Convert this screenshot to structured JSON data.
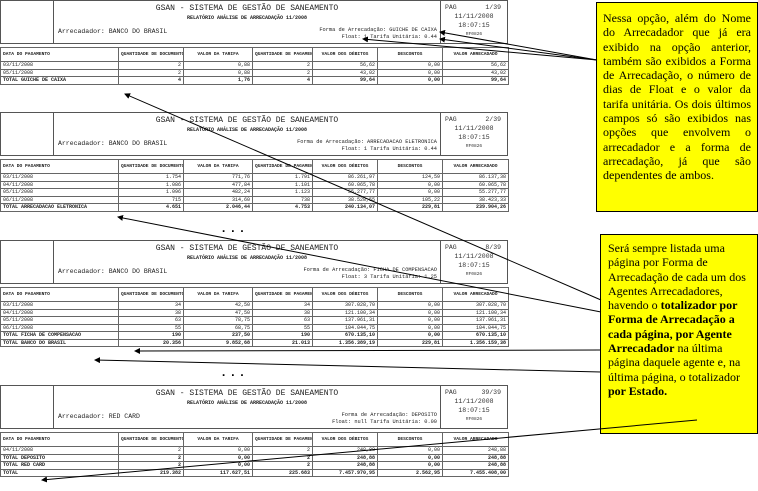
{
  "common": {
    "system_title": "GSAN - SISTEMA DE GESTÃO DE SANEAMENTO",
    "report_title": "RELATÓRIO ANÁLISE DE ARRECADAÇÃO 11/2008",
    "date": "11/11/2008",
    "time": "18:07:15",
    "code": "RF0826",
    "pag_label": "PAG",
    "columns": [
      "DATA DO PAGAMENTO",
      "QUANTIDADE DE DOCUMENTOS",
      "VALOR DA TARIFA",
      "QUANTIDADE DE PAGAMENTOS",
      "VALOR DOS DÉBITOS",
      "DESCONTOS",
      "VALOR ARRECADADO"
    ]
  },
  "reports": [
    {
      "page": "1/39",
      "arrecadador": "Arrecadador: BANCO DO BRASIL",
      "forma": "Forma de Arrecadação: GUICHE DE CAIXA",
      "float_tarifa": "Float: 1    Tarifa Unitária: 0.44",
      "rows": [
        [
          "03/11/2008",
          "2",
          "0,88",
          "2",
          "56,62",
          "0,00",
          "56,62"
        ],
        [
          "05/11/2008",
          "2",
          "0,88",
          "2",
          "43,02",
          "0,00",
          "43,02"
        ]
      ],
      "totals": [
        [
          "TOTAL GUICHE DE CAIXA",
          "4",
          "1,76",
          "4",
          "99,64",
          "0,00",
          "99,64"
        ]
      ]
    },
    {
      "page": "2/39",
      "arrecadador": "Arrecadador: BANCO DO BRASIL",
      "forma": "Forma de Arrecadação: ARRECADACAO ELETRONICA",
      "float_tarifa": "Float: 1    Tarifa Unitária: 0.44",
      "rows": [
        [
          "03/11/2008",
          "1.754",
          "771,76",
          "1.791",
          "86.261,97",
          "124,59",
          "86.137,38"
        ],
        [
          "04/11/2008",
          "1.086",
          "477,84",
          "1.101",
          "60.065,78",
          "0,00",
          "60.065,78"
        ],
        [
          "05/11/2008",
          "1.096",
          "482,24",
          "1.123",
          "55.277,77",
          "0,00",
          "55.277,77"
        ],
        [
          "06/11/2008",
          "715",
          "314,60",
          "738",
          "38.528,55",
          "105,22",
          "38.423,33"
        ]
      ],
      "totals": [
        [
          "TOTAL ARRECADACAO ELETRONICA",
          "4.651",
          "2.046,44",
          "4.753",
          "240.134,07",
          "229,81",
          "239.904,26"
        ]
      ]
    },
    {
      "page": "8/39",
      "arrecadador": "Arrecadador: BANCO DO BRASIL",
      "forma": "Forma de Arrecadação: FICHA DE COMPENSACAO",
      "float_tarifa": "Float: 3    Tarifa Unitária: 1.25",
      "rows": [
        [
          "03/11/2008",
          "34",
          "42,50",
          "34",
          "307.028,70",
          "0,00",
          "307.028,70"
        ],
        [
          "04/11/2008",
          "38",
          "47,50",
          "38",
          "121.100,34",
          "0,00",
          "121.100,34"
        ],
        [
          "05/11/2008",
          "63",
          "78,75",
          "63",
          "137.961,31",
          "0,00",
          "137.961,31"
        ],
        [
          "06/11/2008",
          "55",
          "68,75",
          "55",
          "104.044,75",
          "0,00",
          "104.044,75"
        ]
      ],
      "totals": [
        [
          "TOTAL FICHA DE COMPENSACAO",
          "190",
          "237,50",
          "190",
          "670.135,10",
          "0,00",
          "670.135,10"
        ],
        [
          "TOTAL BANCO DO BRASIL",
          "20.356",
          "9.852,68",
          "21.013",
          "1.356.389,19",
          "229,81",
          "1.356.159,38"
        ]
      ]
    },
    {
      "page": "39/39",
      "arrecadador": "Arrecadador: RED CARD",
      "forma": "Forma de Arrecadação: DEPOSITO",
      "float_tarifa": "Float: null    Tarifa Unitária: 0.00",
      "rows": [
        [
          "04/11/2008",
          "2",
          "0,00",
          "2",
          "248,88",
          "0,00",
          "248,88"
        ]
      ],
      "totals": [
        [
          "TOTAL DEPOSITO",
          "2",
          "0,00",
          "2",
          "248,88",
          "0,00",
          "248,88"
        ],
        [
          "TOTAL RED CARD",
          "2",
          "0,00",
          "2",
          "248,88",
          "0,00",
          "248,88"
        ],
        [
          "TOTAL",
          "219.382",
          "117.627,51",
          "225.683",
          "7.457.970,95",
          "2.562,95",
          "7.455.408,00"
        ]
      ]
    }
  ],
  "ellipsis": "...",
  "note1": "Nessa opção, além do Nome do Arrecadador que já era exibido na opção anterior, também são exibidos a Forma de Arrecadação, o número de dias de Float e o valor da tarifa unitária. Os dois últimos campos só são exibidos nas opções que envolvem o arrecadador e a forma de arrecadação, já que são dependentes de ambos.",
  "note2": {
    "p1": "Será sempre listada uma página por Forma de Arrecadação de cada um dos Agentes Arrecadadores, havendo o ",
    "b1": "totalizador por Forma de Arrecadação a cada página, por Agente Arrecadador",
    "p2": " na última página daquele agente e, na última página, o totalizador ",
    "b2": "por Estado."
  },
  "colors": {
    "note_bg": "#ffff00"
  }
}
